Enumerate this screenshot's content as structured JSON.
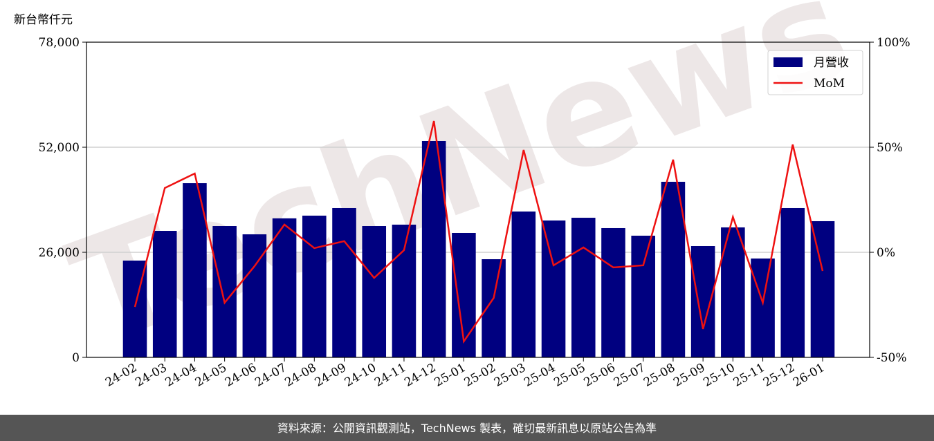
{
  "chart_data": {
    "type": "bar",
    "y_label": "新台幣仟元",
    "watermark": "TechNews",
    "categories": [
      "24-02",
      "24-03",
      "24-04",
      "24-05",
      "24-06",
      "24-07",
      "24-08",
      "24-09",
      "24-10",
      "24-11",
      "24-12",
      "25-01",
      "25-02",
      "25-03",
      "25-04",
      "25-05",
      "25-06",
      "25-07",
      "25-08",
      "25-09",
      "25-10",
      "25-11",
      "25-12",
      "26-01"
    ],
    "series": [
      {
        "name": "月營收",
        "type": "bar",
        "color": "#000080",
        "axis": "y",
        "values": [
          23950,
          31300,
          43100,
          32500,
          30450,
          34400,
          35070,
          36950,
          32500,
          32840,
          53540,
          30790,
          24290,
          36090,
          33870,
          34550,
          31990,
          30110,
          43450,
          27540,
          32160,
          24460,
          36950,
          33700
        ]
      },
      {
        "name": "MoM",
        "type": "line",
        "color": "#ee1111",
        "axis": "y2",
        "values": [
          -26,
          30.6,
          37.5,
          -24,
          -6.6,
          13.2,
          2,
          5.3,
          -12.2,
          1,
          62.5,
          -42.4,
          -21.7,
          48.7,
          -6.2,
          2.3,
          -7.2,
          -6.2,
          44.1,
          -36.5,
          16.8,
          -24,
          51.3,
          -8.9
        ]
      }
    ],
    "ylim": [
      0,
      78000
    ],
    "yticks": [
      0,
      {
        "value": 26000,
        "label": "26,000"
      },
      {
        "value": 52000,
        "label": "52,000"
      },
      {
        "value": 78000,
        "label": "78,000"
      }
    ],
    "y2lim": [
      -50,
      100
    ],
    "y2ticks": [
      {
        "value": -50,
        "label": "-50%"
      },
      {
        "value": 0,
        "label": "0%"
      },
      {
        "value": 50,
        "label": "50%"
      },
      {
        "value": 100,
        "label": "100%"
      }
    ],
    "grid": true,
    "legend": "upper right"
  },
  "footer": "資料來源：公開資訊觀測站，TechNews 製表，確切最新訊息以原站公告為準"
}
